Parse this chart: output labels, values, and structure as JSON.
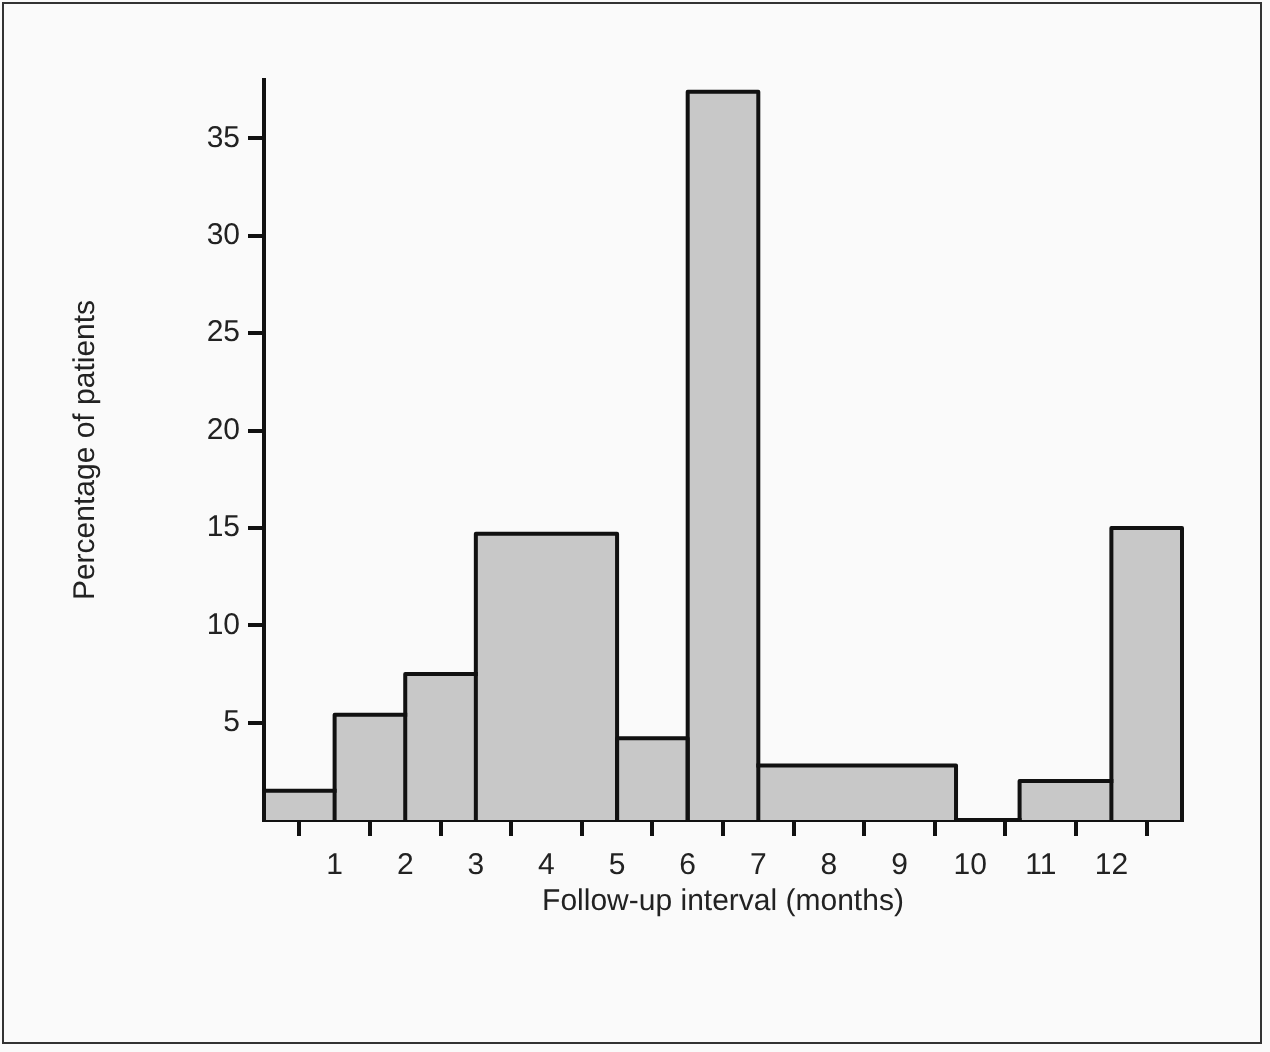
{
  "chart_data": {
    "type": "histogram",
    "xlabel": "Follow-up interval (months)",
    "ylabel": "Percentage of patients",
    "bins": [
      0,
      1,
      2,
      3,
      5,
      6,
      7,
      9.8,
      10.7,
      12,
      13
    ],
    "values": [
      1.5,
      5.4,
      7.5,
      14.7,
      4.2,
      37.4,
      2.8,
      0,
      2.0,
      15.0
    ],
    "color": "#c8c8c8",
    "xlim": [
      0,
      13
    ],
    "xticks": [
      1,
      2,
      3,
      4,
      5,
      6,
      7,
      8,
      9,
      10,
      11,
      12
    ],
    "ylim": [
      0,
      38
    ],
    "yticks": [
      5,
      10,
      15,
      20,
      25,
      30,
      35
    ],
    "grid": false,
    "legend": false
  }
}
